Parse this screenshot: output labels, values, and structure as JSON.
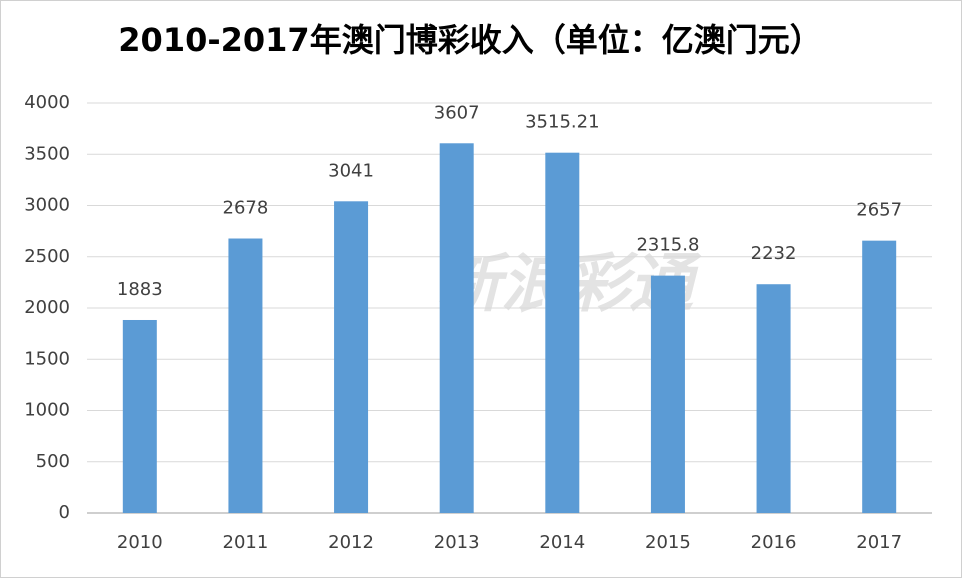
{
  "chart_data": {
    "type": "bar",
    "title": "2010-2017年澳门博彩收入（单位：亿澳门元）",
    "watermark": "新浪彩通",
    "categories": [
      "2010",
      "2011",
      "2012",
      "2013",
      "2014",
      "2015",
      "2016",
      "2017"
    ],
    "values": [
      1883,
      2678,
      3041,
      3607,
      3515.21,
      2315.8,
      2232,
      2657
    ],
    "color": "#5b9bd5",
    "ylim": [
      0,
      4000
    ],
    "yticks": [
      0,
      500,
      1000,
      1500,
      2000,
      2500,
      3000,
      3500,
      4000
    ],
    "grid": true
  }
}
